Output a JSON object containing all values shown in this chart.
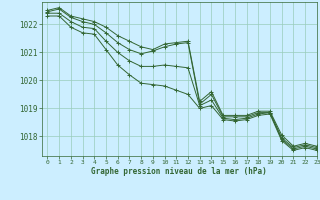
{
  "title": "Graphe pression niveau de la mer (hPa)",
  "background_color": "#cceeff",
  "grid_color": "#99ccbb",
  "line_color": "#336633",
  "xlim": [
    -0.5,
    23
  ],
  "ylim": [
    1017.3,
    1022.8
  ],
  "yticks": [
    1018,
    1019,
    1020,
    1021,
    1022
  ],
  "xticks": [
    0,
    1,
    2,
    3,
    4,
    5,
    6,
    7,
    8,
    9,
    10,
    11,
    12,
    13,
    14,
    15,
    16,
    17,
    18,
    19,
    20,
    21,
    22,
    23
  ],
  "series": [
    [
      1022.5,
      1022.6,
      1022.3,
      1022.2,
      1022.1,
      1021.9,
      1021.6,
      1021.4,
      1021.2,
      1021.1,
      1021.3,
      1021.35,
      1021.4,
      1019.25,
      1019.6,
      1018.75,
      1018.75,
      1018.75,
      1018.9,
      1018.9,
      1018.05,
      1017.65,
      1017.75,
      1017.65
    ],
    [
      1022.45,
      1022.55,
      1022.25,
      1022.1,
      1022.0,
      1021.7,
      1021.35,
      1021.1,
      1020.95,
      1021.05,
      1021.2,
      1021.3,
      1021.35,
      1019.15,
      1019.5,
      1018.7,
      1018.7,
      1018.7,
      1018.85,
      1018.85,
      1017.95,
      1017.6,
      1017.7,
      1017.6
    ],
    [
      1022.4,
      1022.4,
      1022.1,
      1021.9,
      1021.85,
      1021.4,
      1021.0,
      1020.7,
      1020.5,
      1020.5,
      1020.55,
      1020.5,
      1020.45,
      1019.1,
      1019.3,
      1018.65,
      1018.6,
      1018.65,
      1018.8,
      1018.85,
      1017.9,
      1017.55,
      1017.65,
      1017.55
    ],
    [
      1022.3,
      1022.3,
      1021.9,
      1021.7,
      1021.65,
      1021.1,
      1020.55,
      1020.2,
      1019.9,
      1019.85,
      1019.8,
      1019.65,
      1019.5,
      1019.0,
      1019.1,
      1018.6,
      1018.55,
      1018.6,
      1018.75,
      1018.8,
      1017.85,
      1017.5,
      1017.6,
      1017.5
    ]
  ]
}
